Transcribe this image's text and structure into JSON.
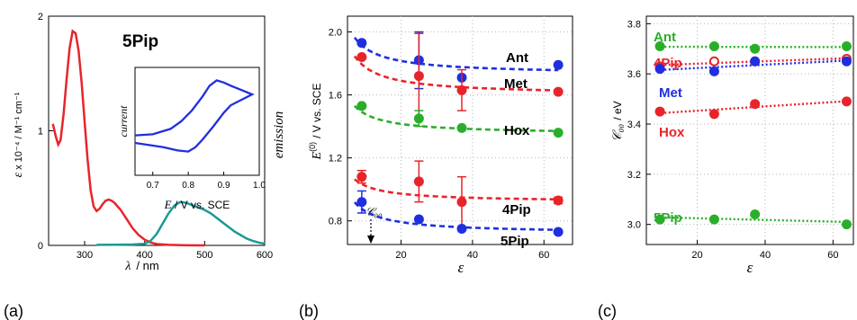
{
  "colors": {
    "red": "#e8242a",
    "teal": "#1a9a94",
    "blue": "#1f2fe0",
    "green": "#2aae2a",
    "black": "#000000",
    "grid": "#b5b5b5"
  },
  "chart_data": [
    {
      "panel": "(a)",
      "type": "line",
      "title": "5Pip",
      "xlabel_sym": "λ",
      "xlabel_unit": "/  nm",
      "ylabel_left": "ε",
      "ylabel_left_rest": "x 10⁻⁴  /  M⁻¹ cm⁻¹",
      "ylabel_right": "emission",
      "annotation": "𝒞₀₀",
      "xlim": [
        240,
        600
      ],
      "ylim": [
        0,
        2
      ],
      "xticks": [
        300,
        400,
        500,
        600
      ],
      "yticks": [
        0,
        1,
        2
      ],
      "series": [
        {
          "color_key": "red",
          "points": [
            [
              247,
              1.06
            ],
            [
              252,
              0.95
            ],
            [
              256,
              0.88
            ],
            [
              260,
              0.92
            ],
            [
              265,
              1.15
            ],
            [
              270,
              1.45
            ],
            [
              275,
              1.72
            ],
            [
              280,
              1.87
            ],
            [
              285,
              1.85
            ],
            [
              290,
              1.7
            ],
            [
              295,
              1.42
            ],
            [
              300,
              1.08
            ],
            [
              305,
              0.75
            ],
            [
              310,
              0.48
            ],
            [
              315,
              0.34
            ],
            [
              320,
              0.3
            ],
            [
              325,
              0.32
            ],
            [
              330,
              0.36
            ],
            [
              335,
              0.39
            ],
            [
              340,
              0.4
            ],
            [
              345,
              0.39
            ],
            [
              350,
              0.37
            ],
            [
              360,
              0.31
            ],
            [
              370,
              0.23
            ],
            [
              380,
              0.15
            ],
            [
              390,
              0.09
            ],
            [
              400,
              0.05
            ],
            [
              410,
              0.025
            ],
            [
              420,
              0.012
            ],
            [
              440,
              0.005
            ],
            [
              470,
              0.001
            ],
            [
              500,
              0.0
            ]
          ]
        },
        {
          "color_key": "teal",
          "points": [
            [
              320,
              0.005
            ],
            [
              380,
              0.008
            ],
            [
              400,
              0.013
            ],
            [
              410,
              0.04
            ],
            [
              420,
              0.1
            ],
            [
              430,
              0.19
            ],
            [
              440,
              0.28
            ],
            [
              450,
              0.35
            ],
            [
              460,
              0.38
            ],
            [
              470,
              0.37
            ],
            [
              480,
              0.35
            ],
            [
              490,
              0.33
            ],
            [
              500,
              0.31
            ],
            [
              510,
              0.28
            ],
            [
              520,
              0.24
            ],
            [
              530,
              0.2
            ],
            [
              540,
              0.16
            ],
            [
              550,
              0.12
            ],
            [
              560,
              0.09
            ],
            [
              570,
              0.06
            ],
            [
              580,
              0.04
            ],
            [
              590,
              0.025
            ],
            [
              600,
              0.015
            ]
          ]
        }
      ],
      "inset": {
        "ylabel": "current",
        "xlabel_sym": "E",
        "xlabel_unit": " / V vs. SCE",
        "xlim": [
          0.65,
          1.0
        ],
        "xticks": [
          0.7,
          0.8,
          0.9,
          1.0
        ],
        "curve": [
          [
            0.65,
            0.37
          ],
          [
            0.7,
            0.38
          ],
          [
            0.75,
            0.43
          ],
          [
            0.78,
            0.5
          ],
          [
            0.81,
            0.6
          ],
          [
            0.84,
            0.73
          ],
          [
            0.86,
            0.83
          ],
          [
            0.88,
            0.88
          ],
          [
            0.9,
            0.86
          ],
          [
            0.92,
            0.83
          ],
          [
            0.95,
            0.79
          ],
          [
            0.98,
            0.75
          ],
          [
            0.95,
            0.7
          ],
          [
            0.92,
            0.65
          ],
          [
            0.9,
            0.58
          ],
          [
            0.87,
            0.45
          ],
          [
            0.84,
            0.33
          ],
          [
            0.82,
            0.26
          ],
          [
            0.8,
            0.22
          ],
          [
            0.77,
            0.23
          ],
          [
            0.73,
            0.26
          ],
          [
            0.69,
            0.28
          ],
          [
            0.65,
            0.3
          ]
        ]
      }
    },
    {
      "panel": "(b)",
      "type": "scatter",
      "xlabel": "ε",
      "ylabel_sym": "E",
      "ylabel_sup": "(0)",
      "ylabel_unit": "/  V vs. SCE",
      "xlim": [
        5,
        68
      ],
      "ylim": [
        0.65,
        2.1
      ],
      "xticks": [
        20,
        40,
        60
      ],
      "yticks": [
        0.8,
        1.2,
        1.6,
        2.0
      ],
      "ytick_labels": [
        "0.8",
        "1.2",
        "1.6",
        "2.0"
      ],
      "series": [
        {
          "name": "Ant",
          "color_key": "blue",
          "x": [
            9,
            25,
            37,
            64
          ],
          "y": [
            1.93,
            1.82,
            1.71,
            1.79
          ],
          "err": [
            null,
            0.18,
            null,
            null
          ],
          "fit": [
            2.12,
            1.73
          ]
        },
        {
          "name": "Met",
          "color_key": "red",
          "x": [
            9,
            25,
            37,
            64
          ],
          "y": [
            1.84,
            1.72,
            1.63,
            1.62
          ],
          "err": [
            null,
            0.27,
            0.13,
            null
          ],
          "fit": [
            2.01,
            1.6
          ]
        },
        {
          "name": "Hox",
          "color_key": "green",
          "x": [
            9,
            25,
            37,
            64
          ],
          "y": [
            1.53,
            1.45,
            1.39,
            1.36
          ],
          "err": [
            null,
            0.05,
            null,
            null
          ],
          "fit": [
            1.65,
            1.35
          ]
        },
        {
          "name": "4Pip",
          "color_key": "red",
          "x": [
            9,
            25,
            37,
            64
          ],
          "y": [
            1.08,
            1.05,
            0.92,
            0.93
          ],
          "err": [
            0.04,
            0.13,
            0.16,
            0.02
          ],
          "fit": [
            1.16,
            0.92
          ]
        },
        {
          "name": "5Pip",
          "color_key": "blue",
          "x": [
            9,
            25,
            37,
            64
          ],
          "y": [
            0.92,
            0.81,
            0.75,
            0.73
          ],
          "err": [
            0.07,
            null,
            null,
            null
          ],
          "fit": [
            1.05,
            0.72
          ]
        }
      ]
    },
    {
      "panel": "(c)",
      "type": "scatter",
      "xlabel": "ε",
      "ylabel_sym": "𝒞₀₀",
      "ylabel_unit": "/  eV",
      "xlim": [
        5,
        66
      ],
      "ylim": [
        2.92,
        3.83
      ],
      "xticks": [
        20,
        40,
        60
      ],
      "yticks": [
        3.0,
        3.2,
        3.4,
        3.6,
        3.8
      ],
      "ytick_labels": [
        "3.0",
        "3.2",
        "3.4",
        "3.6",
        "3.8"
      ],
      "series": [
        {
          "name": "Ant",
          "color_key": "green",
          "x": [
            9,
            25,
            37,
            64
          ],
          "y": [
            3.71,
            3.71,
            3.7,
            3.71
          ],
          "open": [
            false,
            false,
            false,
            false
          ]
        },
        {
          "name": "4Pip",
          "color_key": "red",
          "x": [
            9,
            25,
            37,
            64
          ],
          "y": [
            3.63,
            3.65,
            3.65,
            3.66
          ],
          "open": [
            false,
            true,
            false,
            true
          ]
        },
        {
          "name": "Met",
          "color_key": "blue",
          "x": [
            9,
            25,
            37,
            64
          ],
          "y": [
            3.62,
            3.61,
            3.65,
            3.65
          ],
          "open": [
            false,
            false,
            false,
            false
          ]
        },
        {
          "name": "Hox",
          "color_key": "red",
          "x": [
            9,
            25,
            37,
            64
          ],
          "y": [
            3.45,
            3.44,
            3.48,
            3.49
          ],
          "open": [
            false,
            false,
            false,
            false
          ]
        },
        {
          "name": "5Pip",
          "color_key": "green",
          "x": [
            9,
            25,
            37,
            64
          ],
          "y": [
            3.02,
            3.02,
            3.04,
            3.0
          ],
          "open": [
            false,
            false,
            false,
            false
          ]
        }
      ]
    }
  ]
}
